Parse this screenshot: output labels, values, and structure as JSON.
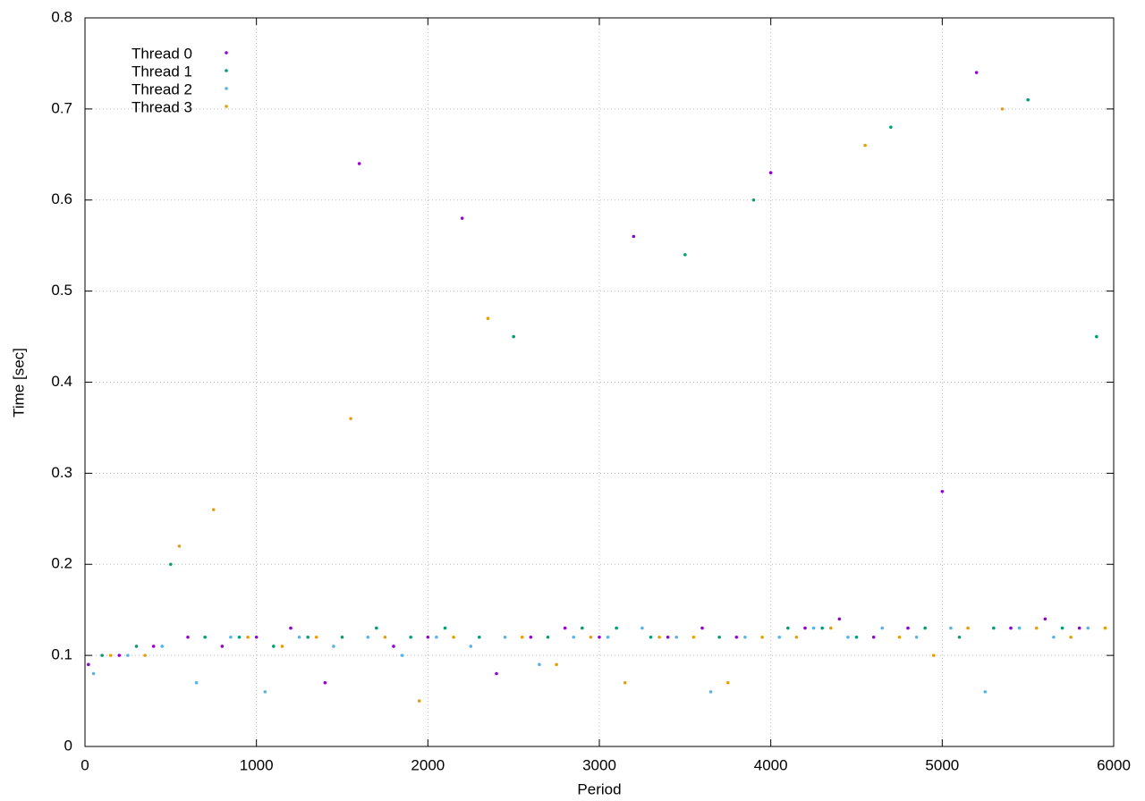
{
  "chart_data": {
    "type": "scatter",
    "xlabel": "Period",
    "ylabel": "Time [sec]",
    "xlim": [
      0,
      6000
    ],
    "ylim": [
      0,
      0.8
    ],
    "xticks": [
      0,
      1000,
      2000,
      3000,
      4000,
      5000,
      6000
    ],
    "yticks": [
      0,
      0.1,
      0.2,
      0.3,
      0.4,
      0.5,
      0.6,
      0.7,
      0.8
    ],
    "grid": true,
    "legend": "top-left",
    "series": [
      {
        "name": "Thread 0",
        "color": "#9400d3",
        "x": [
          20,
          200,
          400,
          600,
          800,
          1000,
          1200,
          1400,
          1600,
          1800,
          2000,
          2200,
          2400,
          2600,
          2800,
          3000,
          3200,
          3400,
          3600,
          3800,
          4000,
          4200,
          4400,
          4600,
          4800,
          5000,
          5200,
          5400,
          5600,
          5800
        ],
        "values": [
          0.09,
          0.1,
          0.11,
          0.12,
          0.11,
          0.12,
          0.13,
          0.07,
          0.64,
          0.11,
          0.12,
          0.58,
          0.08,
          0.12,
          0.13,
          0.12,
          0.56,
          0.12,
          0.13,
          0.12,
          0.63,
          0.13,
          0.14,
          0.12,
          0.13,
          0.28,
          0.74,
          0.13,
          0.14,
          0.13
        ]
      },
      {
        "name": "Thread 1",
        "color": "#009e73",
        "x": [
          100,
          300,
          500,
          700,
          900,
          1100,
          1300,
          1500,
          1700,
          1900,
          2100,
          2300,
          2500,
          2700,
          2900,
          3100,
          3300,
          3500,
          3700,
          3900,
          4100,
          4300,
          4500,
          4700,
          4900,
          5100,
          5300,
          5500,
          5700,
          5900
        ],
        "values": [
          0.1,
          0.11,
          0.2,
          0.12,
          0.12,
          0.11,
          0.12,
          0.12,
          0.13,
          0.12,
          0.13,
          0.12,
          0.45,
          0.12,
          0.13,
          0.13,
          0.12,
          0.54,
          0.12,
          0.6,
          0.13,
          0.13,
          0.12,
          0.68,
          0.13,
          0.12,
          0.13,
          0.71,
          0.13,
          0.45
        ]
      },
      {
        "name": "Thread 2",
        "color": "#56b4e9",
        "x": [
          50,
          250,
          450,
          650,
          850,
          1050,
          1250,
          1450,
          1650,
          1850,
          2050,
          2250,
          2450,
          2650,
          2850,
          3050,
          3250,
          3450,
          3650,
          3850,
          4050,
          4250,
          4450,
          4650,
          4850,
          5050,
          5250,
          5450,
          5650,
          5850
        ],
        "values": [
          0.08,
          0.1,
          0.11,
          0.07,
          0.12,
          0.06,
          0.12,
          0.11,
          0.12,
          0.1,
          0.12,
          0.11,
          0.12,
          0.09,
          0.12,
          0.12,
          0.13,
          0.12,
          0.06,
          0.12,
          0.12,
          0.13,
          0.12,
          0.13,
          0.12,
          0.13,
          0.06,
          0.13,
          0.12,
          0.13
        ]
      },
      {
        "name": "Thread 3",
        "color": "#e69f00",
        "x": [
          150,
          350,
          550,
          750,
          950,
          1150,
          1350,
          1550,
          1750,
          1950,
          2150,
          2350,
          2550,
          2750,
          2950,
          3150,
          3350,
          3550,
          3750,
          3950,
          4150,
          4350,
          4550,
          4750,
          4950,
          5150,
          5350,
          5550,
          5750,
          5950
        ],
        "values": [
          0.1,
          0.1,
          0.22,
          0.26,
          0.12,
          0.11,
          0.12,
          0.36,
          0.12,
          0.05,
          0.12,
          0.47,
          0.12,
          0.09,
          0.12,
          0.07,
          0.12,
          0.12,
          0.07,
          0.12,
          0.12,
          0.13,
          0.66,
          0.12,
          0.1,
          0.13,
          0.7,
          0.13,
          0.12,
          0.13
        ]
      }
    ]
  }
}
